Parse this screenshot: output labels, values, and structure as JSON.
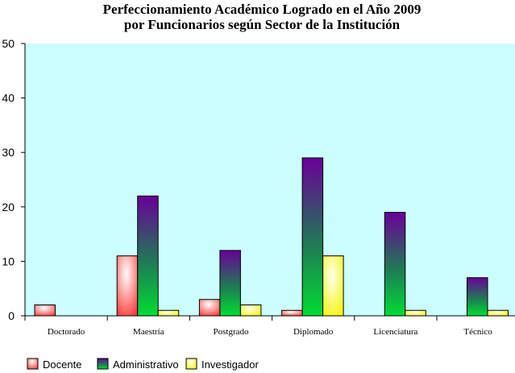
{
  "chart_data": {
    "type": "bar",
    "title": [
      "Perfeccionamiento Académico Logrado en el Año 2009",
      "por Funcionarios según Sector de la Institución"
    ],
    "categories": [
      "Doctorado",
      "Maestría",
      "Postgrado",
      "Diplomado",
      "Licenciatura",
      "Técnico"
    ],
    "series": [
      {
        "name": "Docente",
        "values": [
          2,
          11,
          3,
          1,
          0,
          0
        ]
      },
      {
        "name": "Administrativo",
        "values": [
          0,
          22,
          12,
          29,
          19,
          7
        ]
      },
      {
        "name": "Investigador",
        "values": [
          0,
          1,
          2,
          11,
          1,
          1
        ]
      }
    ],
    "ylim": [
      0,
      50
    ],
    "yticks": [
      0,
      10,
      20,
      30,
      40,
      50
    ],
    "xlabel": "",
    "ylabel": "",
    "grid": false,
    "legend_position": "bottom-left",
    "plot_background": "#ccffff",
    "colors": {
      "Docente": {
        "base": "#ff3a3a",
        "highlight": "#ffffff"
      },
      "Administrativo": {
        "top": "#6a0099",
        "bottom": "#00dd33"
      },
      "Investigador": {
        "base": "#f2f500",
        "highlight": "#ffffee"
      }
    }
  }
}
